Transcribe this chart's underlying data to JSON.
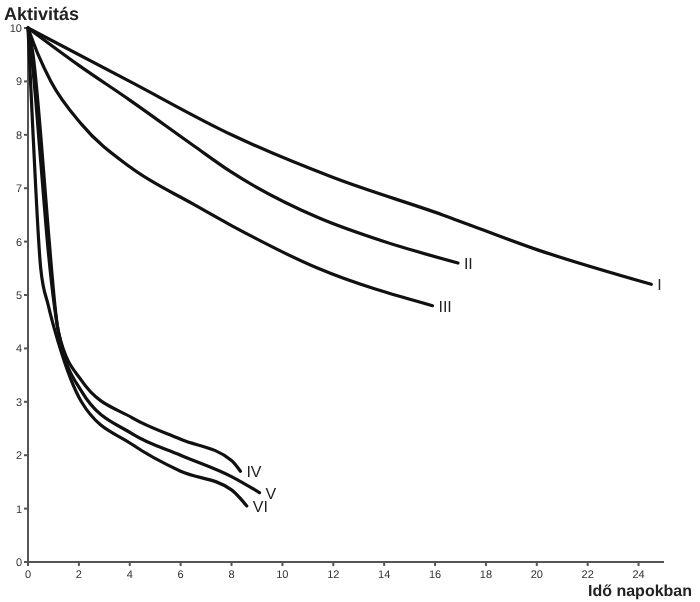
{
  "chart_data": {
    "type": "line",
    "xlabel": "Idő napokban",
    "ylabel": "Aktivitás",
    "xlim": [
      0,
      25
    ],
    "ylim": [
      0,
      10
    ],
    "xticks": [
      0,
      2,
      4,
      6,
      8,
      10,
      12,
      14,
      16,
      18,
      20,
      22,
      24
    ],
    "yticks": [
      0,
      1,
      2,
      3,
      4,
      5,
      6,
      7,
      8,
      9,
      10
    ],
    "grid": false,
    "marker": "none",
    "line_style": "solid",
    "series": [
      {
        "name": "I",
        "color": "#111111",
        "x": [
          0,
          4,
          8,
          12,
          16.3,
          20,
          24.5
        ],
        "values": [
          10,
          9,
          8,
          7.2,
          6.5,
          5.85,
          5.2
        ]
      },
      {
        "name": "II",
        "color": "#111111",
        "x": [
          0,
          2,
          4,
          6.5,
          8,
          11.4,
          14,
          16.9
        ],
        "values": [
          10,
          9.3,
          8.65,
          7.8,
          7.3,
          6.45,
          6,
          5.6
        ]
      },
      {
        "name": "III",
        "color": "#111111",
        "x": [
          0,
          0.4,
          0.9,
          2.1,
          4,
          6.5,
          8,
          11.4,
          15.9
        ],
        "values": [
          10,
          9.5,
          9,
          8.2,
          7.4,
          6.7,
          6.3,
          5.5,
          4.8
        ]
      },
      {
        "name": "IV",
        "color": "#111111",
        "x": [
          0,
          0.2,
          0.5,
          0.8,
          1.2,
          2.1,
          4.1,
          6,
          8,
          8.35
        ],
        "values": [
          10,
          9.5,
          8,
          6.2,
          4.3,
          3.4,
          2.7,
          2.3,
          1.9,
          1.7
        ]
      },
      {
        "name": "V",
        "color": "#111111",
        "x": [
          0,
          0.2,
          0.5,
          0.8,
          1.2,
          2.1,
          4.1,
          6,
          8,
          9.1
        ],
        "values": [
          10,
          9.2,
          7.5,
          5.8,
          4.3,
          3.2,
          2.4,
          2,
          1.6,
          1.3
        ]
      },
      {
        "name": "VI",
        "color": "#111111",
        "x": [
          0,
          0.2,
          0.5,
          0.8,
          1.2,
          2.1,
          4.1,
          6,
          8,
          8.6
        ],
        "values": [
          10,
          8,
          5.5,
          4.8,
          4.1,
          3,
          2.2,
          1.7,
          1.35,
          1.05
        ]
      }
    ]
  }
}
